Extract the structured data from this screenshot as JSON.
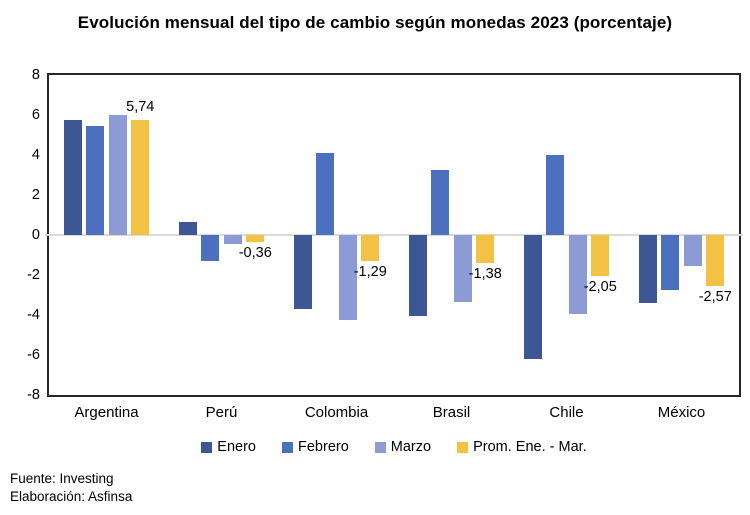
{
  "title": "Evolución mensual del tipo de cambio según monedas 2023 (porcentaje)",
  "footer": {
    "source": "Fuente: Investing",
    "elaboration": "Elaboración: Asfinsa"
  },
  "colors": {
    "enero": "#3D5795",
    "febrero": "#4C6FBE",
    "marzo": "#8C9BD5",
    "prom": "#F3C245",
    "zero_line": "#D9D9D9",
    "frame": "#262626",
    "text": "#000000"
  },
  "chart_data": {
    "type": "bar",
    "title": "Evolución mensual del tipo de cambio según monedas 2023 (porcentaje)",
    "categories": [
      "Argentina",
      "Perú",
      "Colombia",
      "Brasil",
      "Chile",
      "México"
    ],
    "series": [
      {
        "name": "Enero",
        "color_key": "enero",
        "values": [
          5.77,
          0.65,
          -3.7,
          -4.05,
          -6.2,
          -3.4
        ]
      },
      {
        "name": "Febrero",
        "color_key": "febrero",
        "values": [
          5.47,
          -1.3,
          4.08,
          3.25,
          4.0,
          -2.75
        ]
      },
      {
        "name": "Marzo",
        "color_key": "marzo",
        "values": [
          5.98,
          -0.43,
          -4.25,
          -3.34,
          -3.95,
          -1.56
        ]
      },
      {
        "name": "Prom. Ene. - Mar.",
        "color_key": "prom",
        "values": [
          5.74,
          -0.36,
          -1.29,
          -1.38,
          -2.05,
          -2.57
        ],
        "data_labels": [
          "5,74",
          "-0,36",
          "-1,29",
          "-1,38",
          "-2,05",
          "-2,57"
        ]
      }
    ],
    "ylim": [
      -8,
      8
    ],
    "yticks": [
      8,
      6,
      4,
      2,
      0,
      -2,
      -4,
      -6,
      -8
    ],
    "grid": "zero-line-only",
    "legend_position": "bottom",
    "xlabel": "",
    "ylabel": ""
  }
}
